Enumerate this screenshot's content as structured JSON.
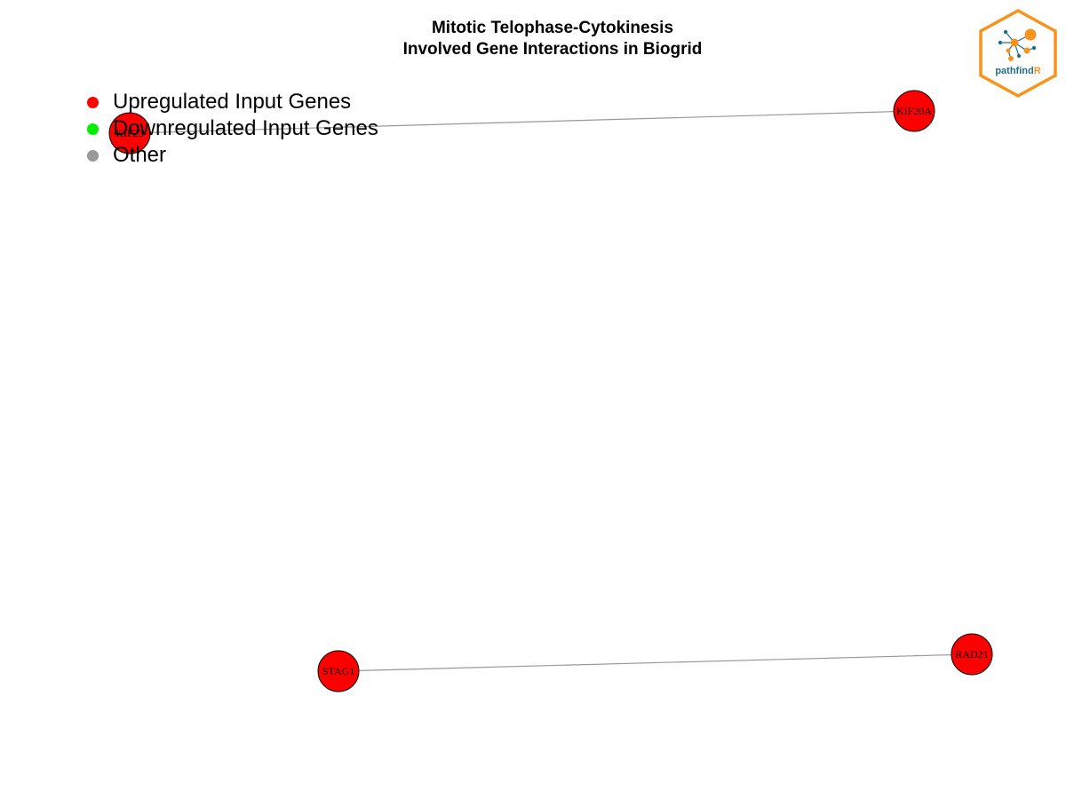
{
  "title": {
    "line1": "Mitotic Telophase-Cytokinesis",
    "line2": "Involved Gene Interactions in Biogrid"
  },
  "legend": {
    "items": [
      {
        "label": "Upregulated Input Genes",
        "color": "#ff0000"
      },
      {
        "label": "Downregulated Input Genes",
        "color": "#00ee00"
      },
      {
        "label": "Other",
        "color": "#999999"
      }
    ]
  },
  "network": {
    "node_fill": "#ff0000",
    "node_stroke": "#000000",
    "edge_color": "#999999",
    "nodes": [
      {
        "id": "KIF23",
        "label": "KIF23"
      },
      {
        "id": "KIF20A",
        "label": "KIF20A"
      },
      {
        "id": "STAG1",
        "label": "STAG1"
      },
      {
        "id": "RAD21",
        "label": "RAD21"
      }
    ],
    "edges": [
      {
        "source": "KIF23",
        "target": "KIF20A"
      },
      {
        "source": "STAG1",
        "target": "RAD21"
      }
    ]
  },
  "logo": {
    "text": "pathfindR",
    "text_main": "pathfind",
    "text_accent": "R",
    "border_color": "#f7941d",
    "accent_color": "#f7941d",
    "text_color": "#1f6f8b"
  }
}
